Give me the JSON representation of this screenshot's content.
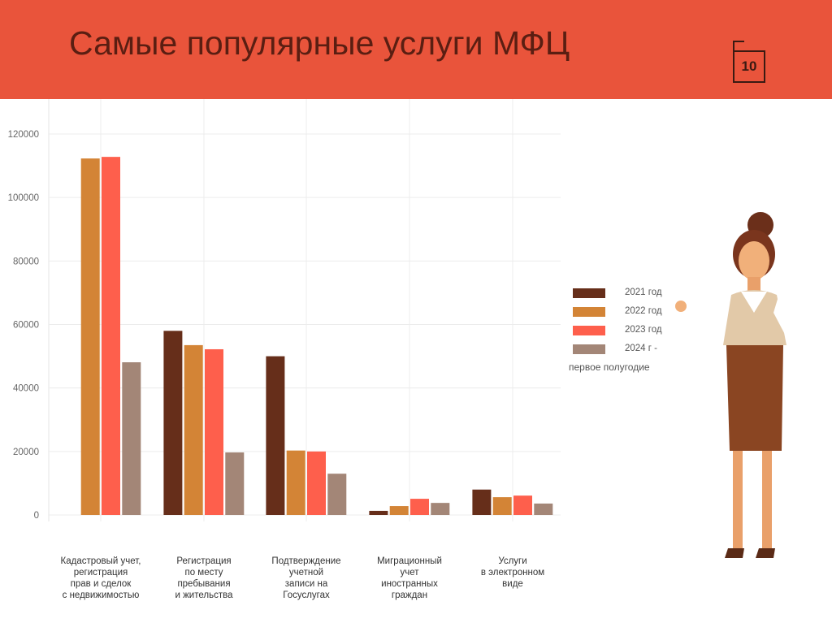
{
  "header": {
    "title": "Самые популярные услуги МФЦ",
    "page_number": "10"
  },
  "chart_data": {
    "type": "bar",
    "categories": [
      "Кадастровый учет,\nрегистрация\nправ и сделок\nс недвижимостью",
      "Регистрация\nпо месту\nпребывания\nи жительства",
      "Подтверждение\nучетной\nзаписи на\nГосуслугах",
      "Миграционный\nучет\nиностранных\nграждан",
      "Услуги\nв электронном\nвиде"
    ],
    "series": [
      {
        "name": "2021 год",
        "color": "#662E1A",
        "values": [
          0,
          58000,
          50000,
          1300,
          8000
        ]
      },
      {
        "name": "2022 год",
        "color": "#D38436",
        "values": [
          112300,
          53500,
          20300,
          2800,
          5600
        ]
      },
      {
        "name": "2023 год",
        "color": "#FE5F4C",
        "values": [
          112800,
          52200,
          20000,
          5100,
          6100
        ]
      },
      {
        "name": "2024 г  -",
        "color": "#A38677",
        "values": [
          48100,
          19700,
          13000,
          3800,
          3600
        ]
      }
    ],
    "legend_note": "первое полугодие",
    "yticks": [
      "0",
      "20000",
      "40000",
      "60000",
      "80000",
      "100000",
      "120000"
    ],
    "ylim": [
      0,
      120000
    ],
    "grid": true,
    "legend_position": "right"
  }
}
